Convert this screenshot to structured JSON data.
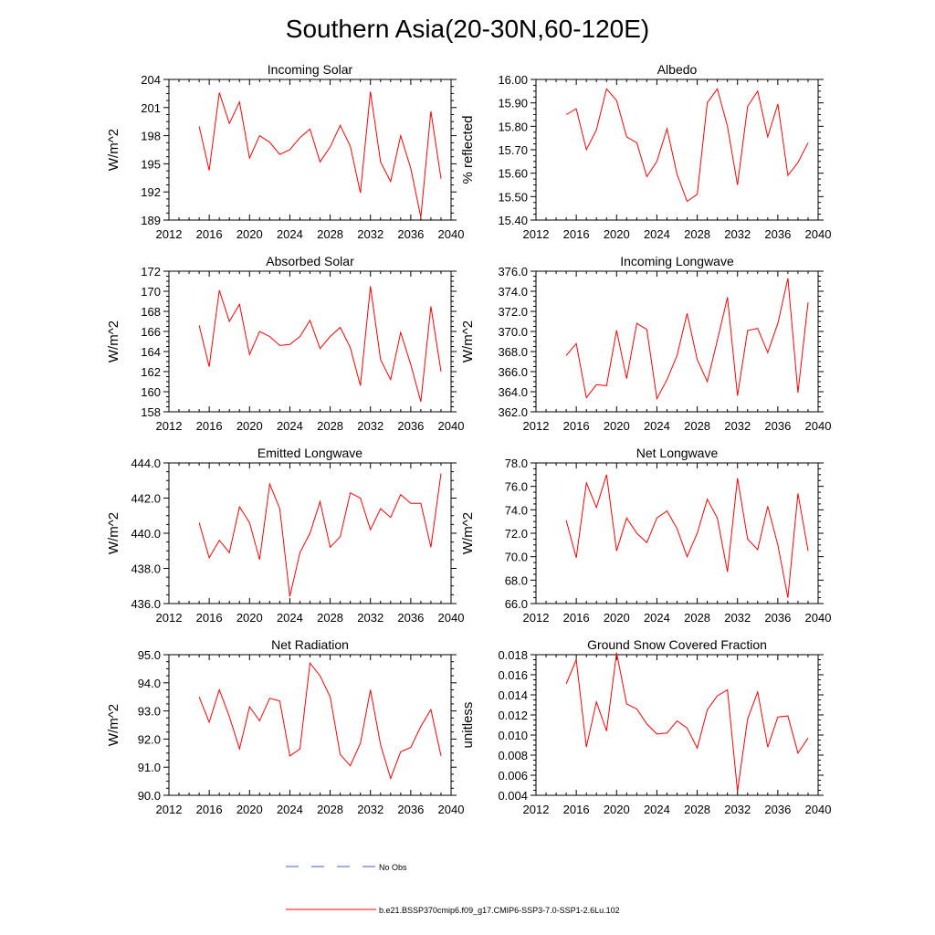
{
  "page": {
    "title": "Southern Asia(20-30N,60-120E)"
  },
  "legend": {
    "obs_label": "No Obs",
    "obs_color": "#4a5bc4",
    "model_label": "b.e21.BSSP370cmip6.f09_g17.CMIP6-SSP3-7.0-SSP1-2.6Lu.102",
    "model_color": "#ff0000"
  },
  "chart_data": [
    {
      "type": "line",
      "title": "Incoming Solar",
      "ylabel": "W/m^2",
      "xlim": [
        2012,
        2040
      ],
      "ylim": [
        189,
        204
      ],
      "x_ticks": [
        2012,
        2016,
        2020,
        2024,
        2028,
        2032,
        2036,
        2040
      ],
      "y_ticks": [
        "189",
        "192",
        "195",
        "198",
        "201",
        "204"
      ],
      "x": [
        2015,
        2016,
        2017,
        2018,
        2019,
        2020,
        2021,
        2022,
        2023,
        2024,
        2025,
        2026,
        2027,
        2028,
        2029,
        2030,
        2031,
        2032,
        2033,
        2034,
        2035,
        2036,
        2037,
        2038,
        2039
      ],
      "series": [
        {
          "name": "b.e21.BSSP370cmip6.f09_g17.CMIP6-SSP3-7.0-SSP1-2.6Lu.102",
          "values": [
            199,
            194.3,
            202.6,
            199.3,
            201.6,
            195.6,
            198,
            197.3,
            196,
            196.5,
            197.8,
            198.7,
            195.2,
            196.8,
            199.1,
            196.9,
            191.9,
            202.7,
            195.2,
            193.1,
            198,
            194.5,
            189.3,
            200.6,
            193.4
          ]
        }
      ]
    },
    {
      "type": "line",
      "title": "Albedo",
      "ylabel": "% reflected",
      "xlim": [
        2012,
        2040
      ],
      "ylim": [
        15.4,
        16.0
      ],
      "x_ticks": [
        2012,
        2016,
        2020,
        2024,
        2028,
        2032,
        2036,
        2040
      ],
      "y_ticks": [
        "15.40",
        "15.50",
        "15.60",
        "15.70",
        "15.80",
        "15.90",
        "16.00"
      ],
      "x": [
        2015,
        2016,
        2017,
        2018,
        2019,
        2020,
        2021,
        2022,
        2023,
        2024,
        2025,
        2026,
        2027,
        2028,
        2029,
        2030,
        2031,
        2032,
        2033,
        2034,
        2035,
        2036,
        2037,
        2038,
        2039
      ],
      "series": [
        {
          "name": "b.e21.BSSP370cmip6.f09_g17.CMIP6-SSP3-7.0-SSP1-2.6Lu.102",
          "values": [
            15.85,
            15.875,
            15.7,
            15.785,
            15.96,
            15.91,
            15.755,
            15.73,
            15.585,
            15.65,
            15.79,
            15.595,
            15.48,
            15.51,
            15.9,
            15.96,
            15.8,
            15.55,
            15.885,
            15.95,
            15.755,
            15.895,
            15.59,
            15.645,
            15.73
          ]
        }
      ]
    },
    {
      "type": "line",
      "title": "Absorbed Solar",
      "ylabel": "W/m^2",
      "xlim": [
        2012,
        2040
      ],
      "ylim": [
        158,
        172
      ],
      "x_ticks": [
        2012,
        2016,
        2020,
        2024,
        2028,
        2032,
        2036,
        2040
      ],
      "y_ticks": [
        "158",
        "160",
        "162",
        "164",
        "166",
        "168",
        "170",
        "172"
      ],
      "x": [
        2015,
        2016,
        2017,
        2018,
        2019,
        2020,
        2021,
        2022,
        2023,
        2024,
        2025,
        2026,
        2027,
        2028,
        2029,
        2030,
        2031,
        2032,
        2033,
        2034,
        2035,
        2036,
        2037,
        2038,
        2039
      ],
      "series": [
        {
          "name": "b.e21.BSSP370cmip6.f09_g17.CMIP6-SSP3-7.0-SSP1-2.6Lu.102",
          "values": [
            166.6,
            162.5,
            170.1,
            167,
            168.7,
            163.7,
            166,
            165.5,
            164.6,
            164.7,
            165.5,
            167.1,
            164.3,
            165.5,
            166.4,
            164.4,
            160.6,
            170.5,
            163.2,
            161.2,
            165.9,
            162.7,
            159,
            168.5,
            162
          ]
        }
      ]
    },
    {
      "type": "line",
      "title": "Incoming Longwave",
      "ylabel": "W/m^2",
      "xlim": [
        2012,
        2040
      ],
      "ylim": [
        362,
        376
      ],
      "x_ticks": [
        2012,
        2016,
        2020,
        2024,
        2028,
        2032,
        2036,
        2040
      ],
      "y_ticks": [
        "362.0",
        "364.0",
        "366.0",
        "368.0",
        "370.0",
        "372.0",
        "374.0",
        "376.0"
      ],
      "x": [
        2015,
        2016,
        2017,
        2018,
        2019,
        2020,
        2021,
        2022,
        2023,
        2024,
        2025,
        2026,
        2027,
        2028,
        2029,
        2030,
        2031,
        2032,
        2033,
        2034,
        2035,
        2036,
        2037,
        2038,
        2039
      ],
      "series": [
        {
          "name": "b.e21.BSSP370cmip6.f09_g17.CMIP6-SSP3-7.0-SSP1-2.6Lu.102",
          "values": [
            367.6,
            368.8,
            363.4,
            364.7,
            364.6,
            370.1,
            365.3,
            370.8,
            370.2,
            363.3,
            365.2,
            367.6,
            371.8,
            367.2,
            365,
            369.1,
            373.4,
            363.6,
            370.1,
            370.3,
            367.9,
            370.8,
            375.3,
            363.9,
            372.9
          ]
        }
      ]
    },
    {
      "type": "line",
      "title": "Emitted Longwave",
      "ylabel": "W/m^2",
      "xlim": [
        2012,
        2040
      ],
      "ylim": [
        436,
        444
      ],
      "x_ticks": [
        2012,
        2016,
        2020,
        2024,
        2028,
        2032,
        2036,
        2040
      ],
      "y_ticks": [
        "436.0",
        "438.0",
        "440.0",
        "442.0",
        "444.0"
      ],
      "x": [
        2015,
        2016,
        2017,
        2018,
        2019,
        2020,
        2021,
        2022,
        2023,
        2024,
        2025,
        2026,
        2027,
        2028,
        2029,
        2030,
        2031,
        2032,
        2033,
        2034,
        2035,
        2036,
        2037,
        2038,
        2039
      ],
      "series": [
        {
          "name": "b.e21.BSSP370cmip6.f09_g17.CMIP6-SSP3-7.0-SSP1-2.6Lu.102",
          "values": [
            440.6,
            438.6,
            439.6,
            438.9,
            441.5,
            440.6,
            438.5,
            442.8,
            441.4,
            436.4,
            438.9,
            440,
            441.8,
            439.2,
            439.8,
            442.3,
            442,
            440.2,
            441.4,
            440.9,
            442.2,
            441.7,
            441.7,
            439.2,
            443.4
          ]
        }
      ]
    },
    {
      "type": "line",
      "title": "Net Longwave",
      "ylabel": "W/m^2",
      "xlim": [
        2012,
        2040
      ],
      "ylim": [
        66,
        78
      ],
      "x_ticks": [
        2012,
        2016,
        2020,
        2024,
        2028,
        2032,
        2036,
        2040
      ],
      "y_ticks": [
        "66.0",
        "68.0",
        "70.0",
        "72.0",
        "74.0",
        "76.0",
        "78.0"
      ],
      "x": [
        2015,
        2016,
        2017,
        2018,
        2019,
        2020,
        2021,
        2022,
        2023,
        2024,
        2025,
        2026,
        2027,
        2028,
        2029,
        2030,
        2031,
        2032,
        2033,
        2034,
        2035,
        2036,
        2037,
        2038,
        2039
      ],
      "series": [
        {
          "name": "b.e21.BSSP370cmip6.f09_g17.CMIP6-SSP3-7.0-SSP1-2.6Lu.102",
          "values": [
            73.1,
            69.9,
            76.3,
            74.2,
            77,
            70.5,
            73.3,
            72,
            71.2,
            73.3,
            73.9,
            72.4,
            70,
            72,
            74.9,
            73.3,
            68.7,
            76.7,
            71.5,
            70.6,
            74.3,
            71,
            66.5,
            75.4,
            70.5
          ]
        }
      ]
    },
    {
      "type": "line",
      "title": "Net Radiation",
      "ylabel": "W/m^2",
      "xlim": [
        2012,
        2040
      ],
      "ylim": [
        90,
        95
      ],
      "x_ticks": [
        2012,
        2016,
        2020,
        2024,
        2028,
        2032,
        2036,
        2040
      ],
      "y_ticks": [
        "90.0",
        "91.0",
        "92.0",
        "93.0",
        "94.0",
        "95.0"
      ],
      "x": [
        2015,
        2016,
        2017,
        2018,
        2019,
        2020,
        2021,
        2022,
        2023,
        2024,
        2025,
        2026,
        2027,
        2028,
        2029,
        2030,
        2031,
        2032,
        2033,
        2034,
        2035,
        2036,
        2037,
        2038,
        2039
      ],
      "series": [
        {
          "name": "b.e21.BSSP370cmip6.f09_g17.CMIP6-SSP3-7.0-SSP1-2.6Lu.102",
          "values": [
            93.5,
            92.6,
            93.75,
            92.8,
            91.65,
            93.15,
            92.65,
            93.45,
            93.35,
            91.4,
            91.65,
            94.7,
            94.25,
            93.5,
            91.45,
            91.05,
            91.85,
            93.75,
            91.8,
            90.6,
            91.55,
            91.7,
            92.45,
            93.05,
            91.4
          ]
        }
      ]
    },
    {
      "type": "line",
      "title": "Ground Snow Covered Fraction",
      "ylabel": "unitless",
      "xlim": [
        2012,
        2040
      ],
      "ylim": [
        0.004,
        0.018
      ],
      "x_ticks": [
        2012,
        2016,
        2020,
        2024,
        2028,
        2032,
        2036,
        2040
      ],
      "y_ticks": [
        "0.004",
        "0.006",
        "0.008",
        "0.010",
        "0.012",
        "0.014",
        "0.016",
        "0.018"
      ],
      "x": [
        2015,
        2016,
        2017,
        2018,
        2019,
        2020,
        2021,
        2022,
        2023,
        2024,
        2025,
        2026,
        2027,
        2028,
        2029,
        2030,
        2031,
        2032,
        2033,
        2034,
        2035,
        2036,
        2037,
        2038,
        2039
      ],
      "series": [
        {
          "name": "b.e21.BSSP370cmip6.f09_g17.CMIP6-SSP3-7.0-SSP1-2.6Lu.102",
          "values": [
            0.0151,
            0.0175,
            0.0088,
            0.0133,
            0.0104,
            0.0182,
            0.0131,
            0.0126,
            0.0111,
            0.0101,
            0.0102,
            0.0114,
            0.0107,
            0.0087,
            0.0125,
            0.0139,
            0.0145,
            0.0044,
            0.0116,
            0.0143,
            0.0088,
            0.0118,
            0.0119,
            0.0082,
            0.0097
          ]
        }
      ]
    }
  ]
}
